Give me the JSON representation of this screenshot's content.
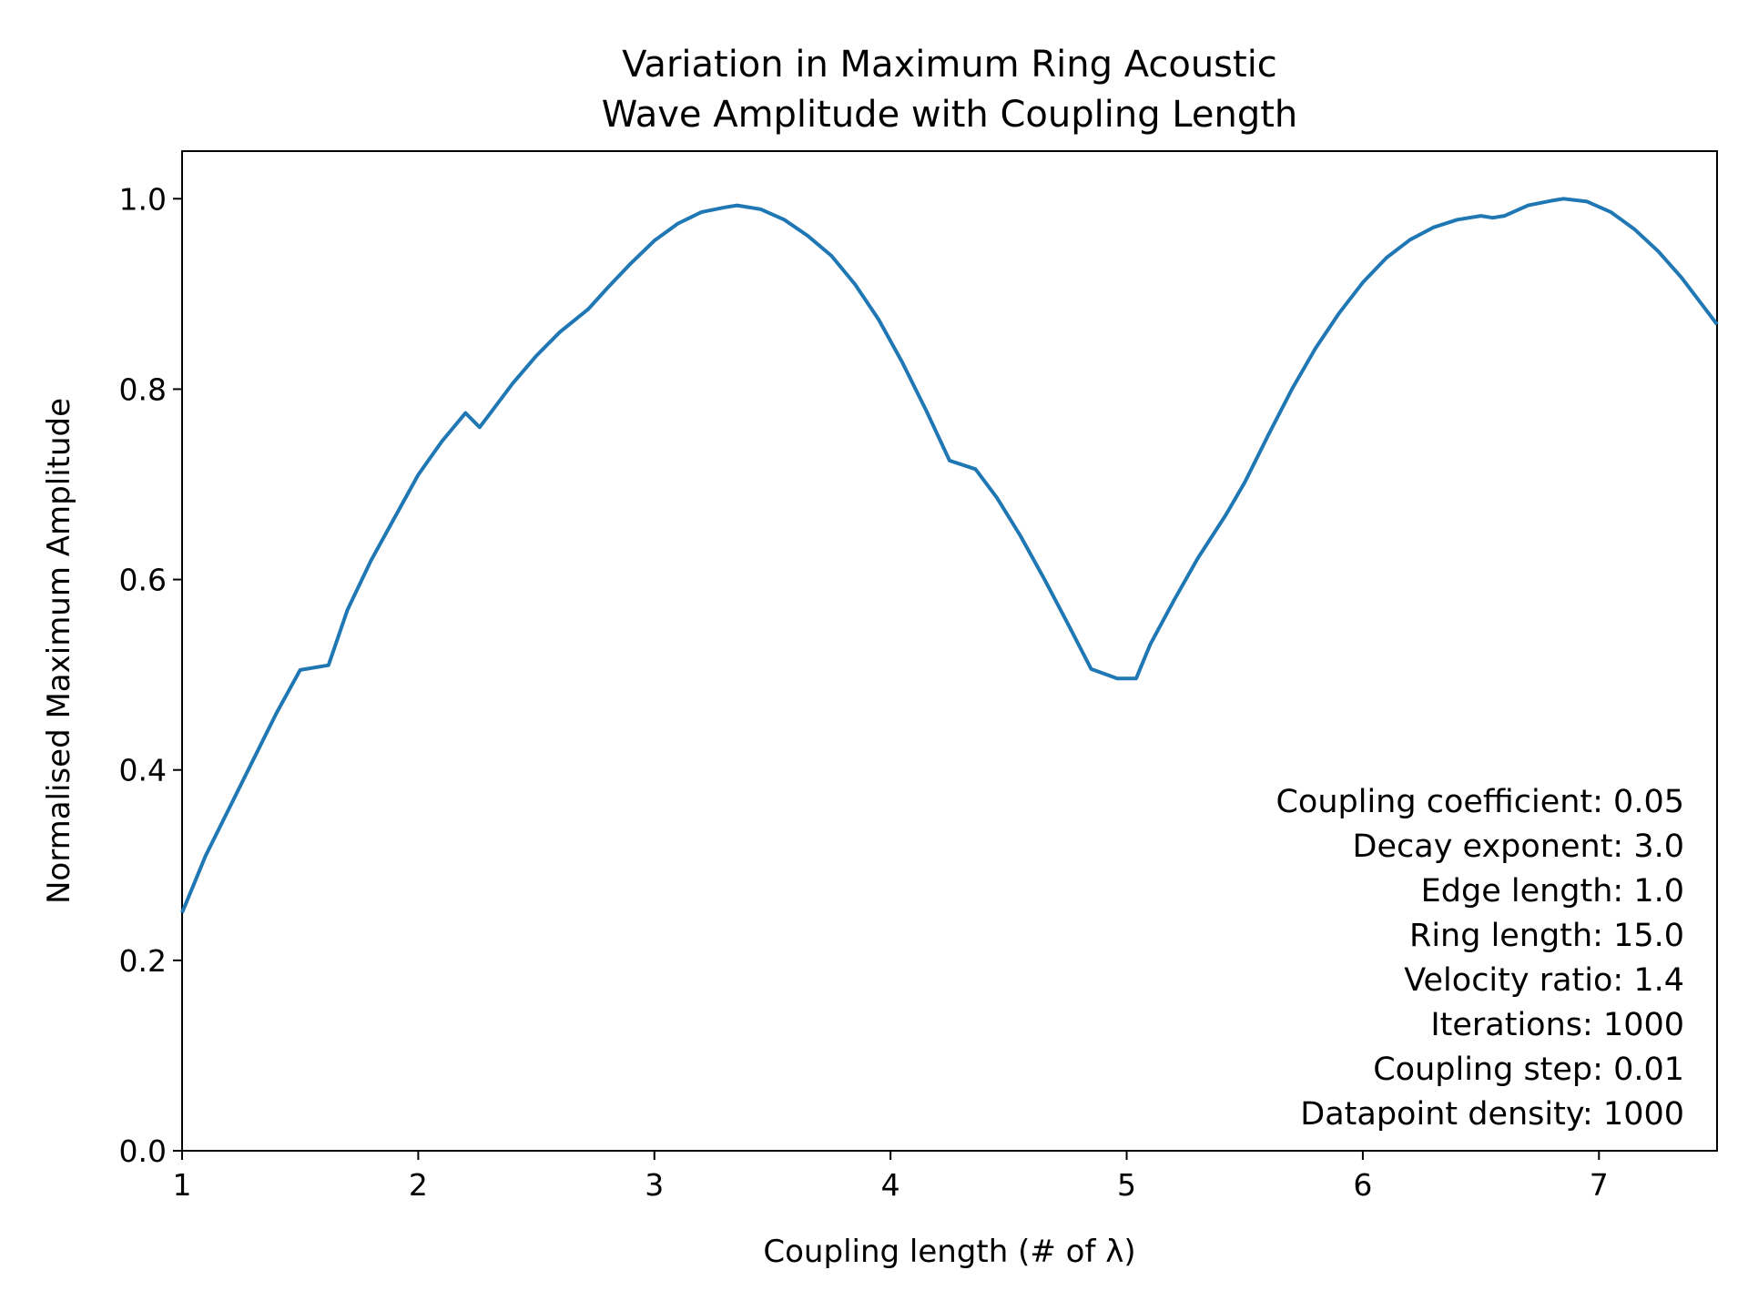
{
  "chart_data": {
    "type": "line",
    "title": [
      "Variation in Maximum Ring Acoustic",
      "Wave Amplitude with Coupling Length"
    ],
    "xlabel": "Coupling length (# of λ)",
    "ylabel": "Normalised Maximum Amplitude",
    "xlim": [
      1,
      7.5
    ],
    "ylim": [
      0,
      1.05
    ],
    "xticks": [
      1,
      2,
      3,
      4,
      5,
      6,
      7
    ],
    "yticks": [
      0.0,
      0.2,
      0.4,
      0.6,
      0.8,
      1.0
    ],
    "ytick_labels": [
      "0.0",
      "0.2",
      "0.4",
      "0.6",
      "0.8",
      "1.0"
    ],
    "grid": false,
    "line_color": "#1f77b4",
    "series": [
      {
        "x": [
          1.0,
          1.1,
          1.2,
          1.3,
          1.4,
          1.5,
          1.62,
          1.7,
          1.8,
          1.9,
          2.0,
          2.1,
          2.2,
          2.26,
          2.3,
          2.4,
          2.5,
          2.6,
          2.72,
          2.8,
          2.9,
          3.0,
          3.1,
          3.2,
          3.3,
          3.35,
          3.45,
          3.55,
          3.65,
          3.75,
          3.85,
          3.95,
          4.05,
          4.15,
          4.25,
          4.36,
          4.45,
          4.55,
          4.65,
          4.75,
          4.85,
          4.96,
          5.04,
          5.1,
          5.2,
          5.3,
          5.42,
          5.5,
          5.6,
          5.7,
          5.8,
          5.9,
          6.0,
          6.1,
          6.2,
          6.3,
          6.4,
          6.5,
          6.55,
          6.6,
          6.7,
          6.8,
          6.85,
          6.95,
          7.05,
          7.15,
          7.25,
          7.35,
          7.5
        ],
        "y": [
          0.25,
          0.31,
          0.36,
          0.41,
          0.46,
          0.505,
          0.51,
          0.568,
          0.62,
          0.665,
          0.71,
          0.745,
          0.775,
          0.76,
          0.773,
          0.806,
          0.835,
          0.86,
          0.884,
          0.906,
          0.932,
          0.956,
          0.974,
          0.986,
          0.991,
          0.993,
          0.989,
          0.978,
          0.961,
          0.94,
          0.91,
          0.873,
          0.828,
          0.778,
          0.725,
          0.716,
          0.686,
          0.646,
          0.601,
          0.554,
          0.506,
          0.496,
          0.496,
          0.532,
          0.578,
          0.622,
          0.668,
          0.702,
          0.752,
          0.8,
          0.843,
          0.88,
          0.912,
          0.938,
          0.957,
          0.97,
          0.978,
          0.982,
          0.98,
          0.982,
          0.993,
          0.998,
          1.0,
          0.997,
          0.986,
          0.968,
          0.945,
          0.917,
          0.868
        ]
      }
    ],
    "annotations": [
      "Coupling coefficient: 0.05",
      "Decay exponent: 3.0",
      "Edge length: 1.0",
      "Ring length: 15.0",
      "Velocity ratio: 1.4",
      "Iterations: 1000",
      "Coupling step: 0.01",
      "Datapoint density: 1000"
    ]
  }
}
